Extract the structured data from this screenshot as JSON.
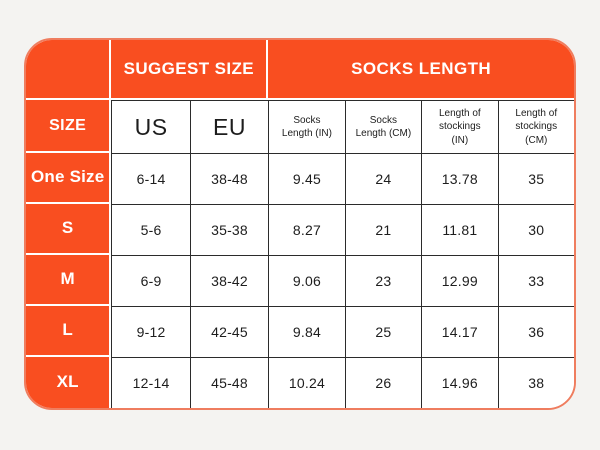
{
  "colors": {
    "page_background": "#f4f3f1",
    "accent_orange": "#f94e20",
    "outer_border_salmon": "#ef7d5f",
    "grid_line_dark": "#2b2b2b",
    "header_text_white": "#ffffff",
    "cell_text_dark": "#1d1d1d"
  },
  "chart_data": {
    "type": "table",
    "title": "",
    "group_headers": [
      {
        "label": "SUGGEST SIZE",
        "span": 2
      },
      {
        "label": "SOCKS LENGTH",
        "span": 4
      }
    ],
    "column_headers": [
      "SIZE",
      "US",
      "EU",
      "Socks Length (IN)",
      "Socks Length (CM)",
      "Length of stockings (IN)",
      "Length of stockings (CM)"
    ],
    "rows": [
      {
        "cells": [
          "One Size",
          "6-14",
          "38-48",
          "9.45",
          "24",
          "13.78",
          "35"
        ]
      },
      {
        "cells": [
          "S",
          "5-6",
          "35-38",
          "8.27",
          "21",
          "11.81",
          "30"
        ]
      },
      {
        "cells": [
          "M",
          "6-9",
          "38-42",
          "9.06",
          "23",
          "12.99",
          "33"
        ]
      },
      {
        "cells": [
          "L",
          "9-12",
          "42-45",
          "9.84",
          "25",
          "14.17",
          "36"
        ]
      },
      {
        "cells": [
          "XL",
          "12-14",
          "45-48",
          "10.24",
          "26",
          "14.96",
          "38"
        ]
      }
    ]
  }
}
